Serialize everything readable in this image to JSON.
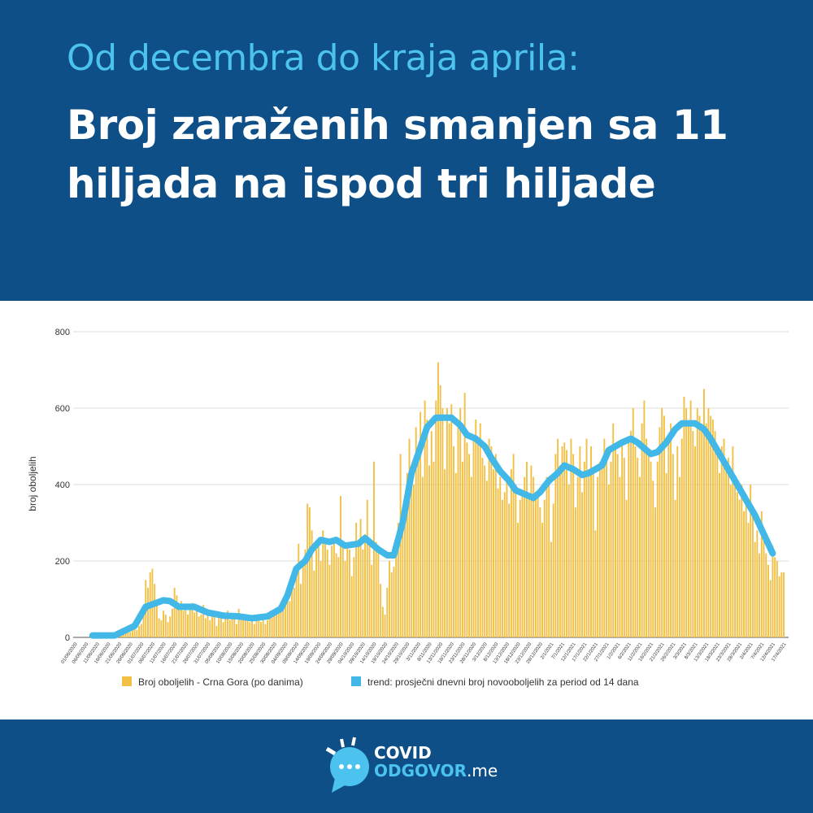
{
  "header": {
    "subtitle": "Od decembra do kraja aprila:",
    "title": "Broj zaraženih smanjen sa 11 hiljada na ispod tri hiljade"
  },
  "colors": {
    "background": "#0e4f87",
    "accent": "#4cc2ef",
    "bars": "#f1c044",
    "trend": "#41b8e8"
  },
  "chart_data": {
    "type": "bar",
    "ylabel": "broj oboljelih",
    "xlabel": "",
    "ylim": [
      0,
      800
    ],
    "yticks": [
      0,
      200,
      400,
      600,
      800
    ],
    "grid": true,
    "legend_placement": "bottom",
    "x_start_date": "01/06/2020",
    "x_ticks": [
      "01/06/2020",
      "06/06/2020",
      "11/06/2020",
      "16/06/2020",
      "21/06/2020",
      "26/06/2020",
      "01/07/2020",
      "06/07/2020",
      "11/07/2020",
      "16/07/2020",
      "21/07/2020",
      "26/07/2020",
      "31/07/2020",
      "05/08/2020",
      "10/08/2020",
      "15/08/2020",
      "20/08/2020",
      "25/08/2020",
      "30/08/2020",
      "04/09/2020",
      "09/09/2020",
      "14/09/2020",
      "19/09/2020",
      "24/09/2020",
      "29/09/2020",
      "04/10/2020",
      "09/10/2020",
      "14/10/2020",
      "19/10/2020",
      "24/10/2020",
      "29/10/2020",
      "3/11/2020",
      "8/11/2020",
      "13/11/2020",
      "18/11/2020",
      "23/11/2020",
      "28/11/2020",
      "3/12/2020",
      "8/12/2020",
      "13/12/2020",
      "18/12/2020",
      "23/12/2020",
      "28/12/2020",
      "2/1/2021",
      "7/1/2021",
      "12/1/2021",
      "17/1/2021",
      "22/1/2021",
      "27/1/2021",
      "1/2/2021",
      "6/2/2021",
      "11/2/2021",
      "16/2/2021",
      "21/2/2021",
      "26/2/2021",
      "3/3/2021",
      "8/3/2021",
      "13/3/2021",
      "18/3/2021",
      "23/3/2021",
      "28/3/2021",
      "2/4/2021",
      "7/4/2021",
      "12/4/2021",
      "17/4/2021"
    ],
    "series": [
      {
        "name": "Broj oboljelih - Crna Gora (po danima)",
        "kind": "bar",
        "values": [
          0,
          0,
          0,
          0,
          0,
          0,
          0,
          0,
          1,
          0,
          0,
          2,
          0,
          1,
          0,
          3,
          2,
          5,
          4,
          8,
          10,
          7,
          12,
          15,
          18,
          14,
          22,
          25,
          20,
          30,
          35,
          60,
          150,
          130,
          170,
          180,
          140,
          90,
          50,
          45,
          70,
          60,
          40,
          55,
          75,
          130,
          110,
          85,
          95,
          70,
          80,
          60,
          75,
          90,
          65,
          70,
          55,
          60,
          85,
          50,
          65,
          45,
          55,
          60,
          30,
          50,
          65,
          40,
          55,
          70,
          45,
          60,
          50,
          35,
          75,
          55,
          60,
          45,
          50,
          40,
          55,
          35,
          45,
          60,
          40,
          50,
          35,
          45,
          55,
          65,
          60,
          75,
          80,
          90,
          70,
          100,
          120,
          95,
          150,
          130,
          170,
          245,
          140,
          200,
          230,
          350,
          340,
          280,
          175,
          230,
          250,
          200,
          280,
          250,
          230,
          190,
          240,
          260,
          220,
          210,
          370,
          240,
          200,
          240,
          230,
          160,
          210,
          300,
          250,
          310,
          230,
          270,
          360,
          240,
          190,
          460,
          250,
          220,
          140,
          80,
          60,
          130,
          200,
          170,
          185,
          240,
          300,
          480,
          310,
          370,
          430,
          520,
          440,
          400,
          550,
          500,
          590,
          420,
          620,
          570,
          450,
          540,
          460,
          620,
          720,
          660,
          600,
          440,
          600,
          560,
          610,
          500,
          430,
          560,
          600,
          460,
          640,
          510,
          480,
          420,
          530,
          570,
          520,
          560,
          470,
          450,
          410,
          520,
          500,
          440,
          480,
          390,
          420,
          360,
          380,
          410,
          350,
          440,
          480,
          400,
          300,
          360,
          380,
          420,
          460,
          370,
          450,
          420,
          360,
          380,
          340,
          300,
          360,
          420,
          400,
          250,
          350,
          480,
          520,
          450,
          500,
          510,
          490,
          400,
          520,
          480,
          340,
          420,
          500,
          380,
          460,
          520,
          440,
          500,
          430,
          280,
          420,
          460,
          440,
          520,
          480,
          400,
          460,
          560,
          500,
          480,
          420,
          510,
          470,
          360,
          520,
          540,
          600,
          500,
          470,
          420,
          560,
          620,
          520,
          480,
          460,
          410,
          340,
          460,
          550,
          600,
          580,
          430,
          510,
          560,
          480,
          360,
          500,
          420,
          520,
          630,
          600,
          560,
          620,
          540,
          500,
          600,
          580,
          560,
          650,
          560,
          600,
          580,
          570,
          540,
          480,
          430,
          500,
          520,
          450,
          470,
          400,
          500,
          420,
          380,
          360,
          400,
          330,
          370,
          300,
          400,
          330,
          250,
          280,
          220,
          330,
          260,
          220,
          190,
          150,
          240,
          210,
          200,
          160,
          170,
          170
        ]
      },
      {
        "name": "trend: prosječni dnevni broj novooboljelih za period od 14 dana",
        "kind": "line",
        "points": [
          [
            "9/6/2020",
            5
          ],
          [
            "19/6/2020",
            5
          ],
          [
            "28/6/2020",
            30
          ],
          [
            "3/7/2020",
            80
          ],
          [
            "11/7/2020",
            97
          ],
          [
            "14/7/2020",
            95
          ],
          [
            "18/7/2020",
            80
          ],
          [
            "25/7/2020",
            80
          ],
          [
            "31/7/2020",
            65
          ],
          [
            "7/8/2020",
            57
          ],
          [
            "14/8/2020",
            55
          ],
          [
            "20/8/2020",
            50
          ],
          [
            "27/8/2020",
            55
          ],
          [
            "2/9/2020",
            75
          ],
          [
            "5/9/2020",
            110
          ],
          [
            "9/9/2020",
            180
          ],
          [
            "13/9/2020",
            200
          ],
          [
            "16/9/2020",
            230
          ],
          [
            "20/9/2020",
            255
          ],
          [
            "24/9/2020",
            250
          ],
          [
            "27/9/2020",
            255
          ],
          [
            "1/10/2020",
            240
          ],
          [
            "7/10/2020",
            245
          ],
          [
            "10/10/2020",
            260
          ],
          [
            "16/10/2020",
            230
          ],
          [
            "20/10/2020",
            215
          ],
          [
            "23/10/2020",
            215
          ],
          [
            "27/10/2020",
            300
          ],
          [
            "31/10/2020",
            430
          ],
          [
            "3/11/2020",
            480
          ],
          [
            "7/11/2020",
            550
          ],
          [
            "11/11/2020",
            575
          ],
          [
            "18/11/2020",
            575
          ],
          [
            "22/11/2020",
            555
          ],
          [
            "25/11/2020",
            530
          ],
          [
            "29/11/2020",
            520
          ],
          [
            "3/12/2020",
            500
          ],
          [
            "6/12/2020",
            470
          ],
          [
            "10/12/2020",
            435
          ],
          [
            "14/12/2020",
            410
          ],
          [
            "17/12/2020",
            385
          ],
          [
            "21/12/2020",
            375
          ],
          [
            "25/12/2020",
            365
          ],
          [
            "28/12/2020",
            380
          ],
          [
            "1/1/2021",
            410
          ],
          [
            "5/1/2021",
            430
          ],
          [
            "8/1/2021",
            450
          ],
          [
            "12/1/2021",
            440
          ],
          [
            "16/1/2021",
            425
          ],
          [
            "19/1/2021",
            430
          ],
          [
            "25/1/2021",
            450
          ],
          [
            "28/1/2021",
            490
          ],
          [
            "3/2/2021",
            510
          ],
          [
            "7/2/2021",
            520
          ],
          [
            "10/2/2021",
            510
          ],
          [
            "16/2/2021",
            480
          ],
          [
            "19/2/2021",
            485
          ],
          [
            "23/2/2021",
            510
          ],
          [
            "27/2/2021",
            545
          ],
          [
            "2/3/2021",
            560
          ],
          [
            "8/3/2021",
            560
          ],
          [
            "12/3/2021",
            545
          ],
          [
            "15/3/2021",
            520
          ],
          [
            "19/3/2021",
            480
          ],
          [
            "24/3/2021",
            430
          ],
          [
            "30/3/2021",
            370
          ],
          [
            "4/4/2021",
            320
          ],
          [
            "8/4/2021",
            270
          ],
          [
            "12/4/2021",
            220
          ]
        ]
      }
    ]
  },
  "footer": {
    "logo_line1": "COVID",
    "logo_line2": "ODGOVOR",
    "logo_suffix": ".me"
  }
}
